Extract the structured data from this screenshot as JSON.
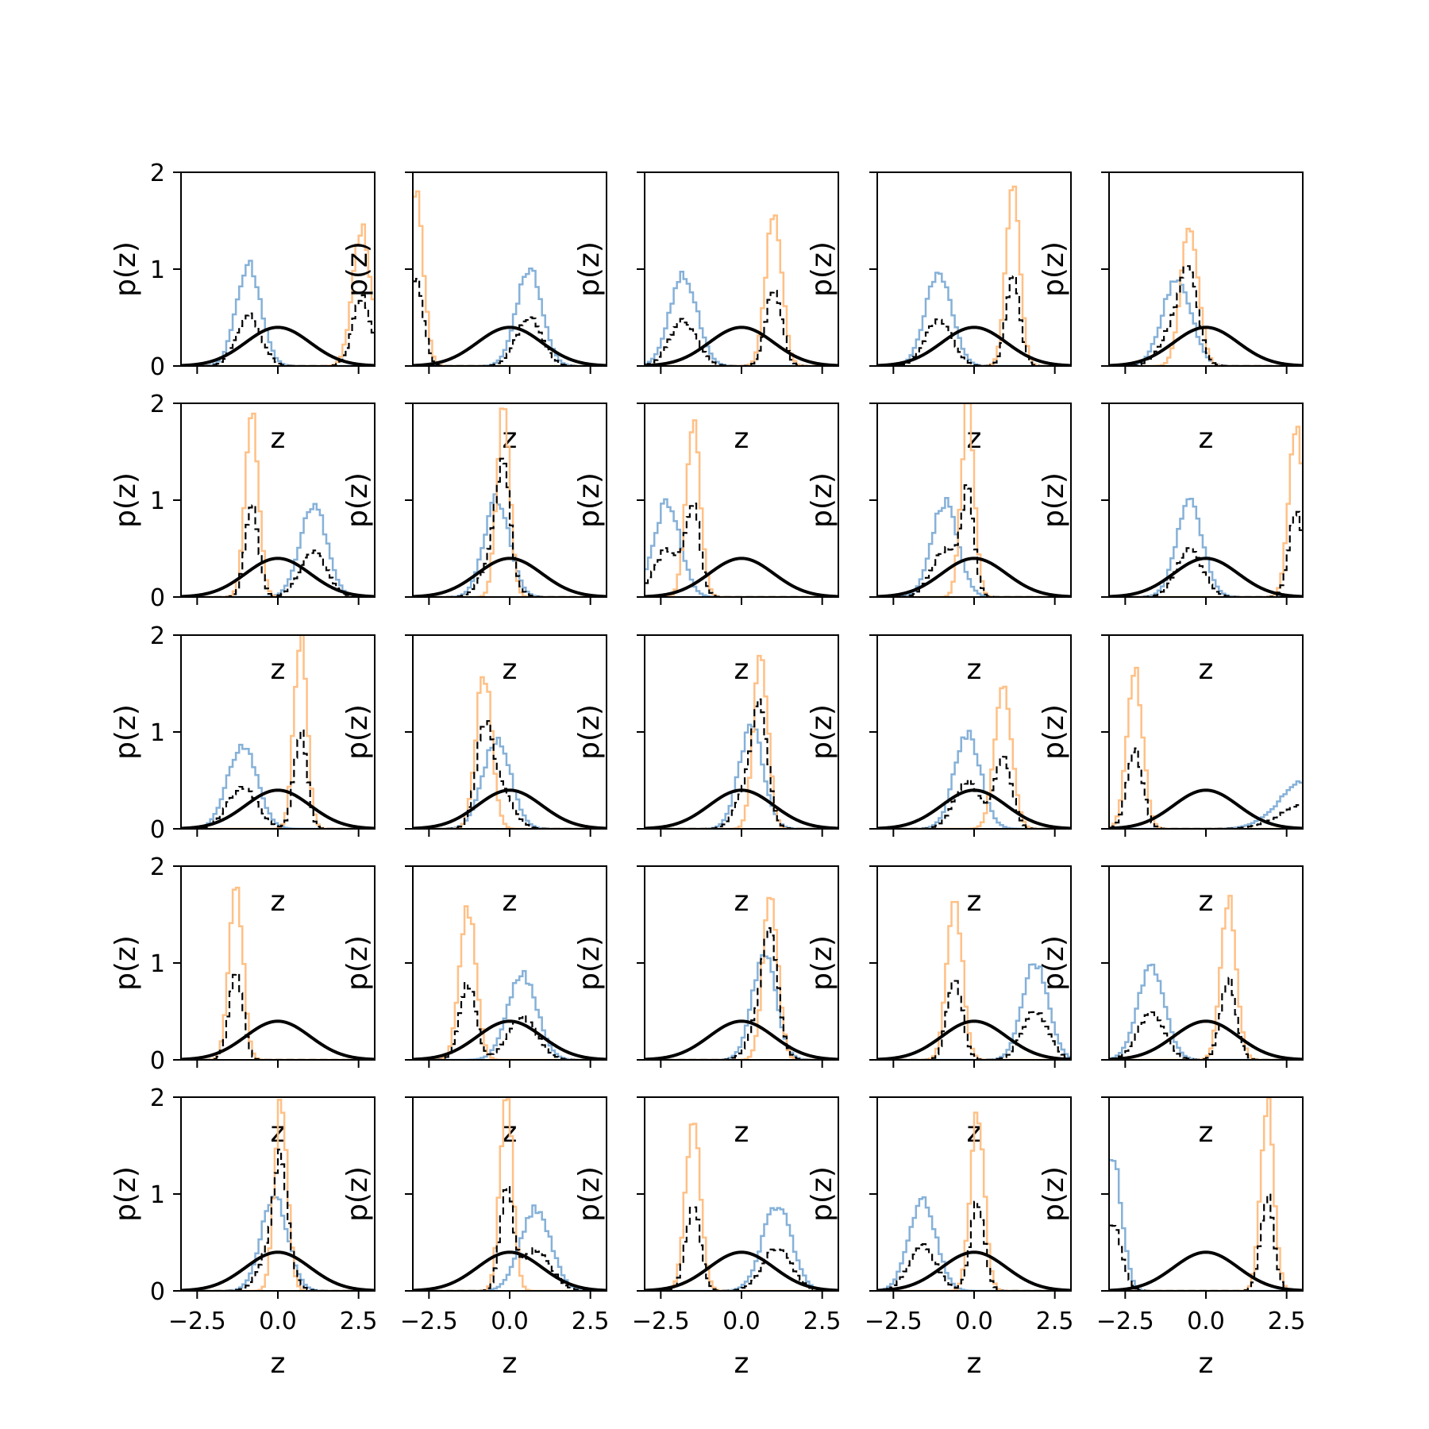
{
  "chart_data": {
    "type": "area",
    "layout": "5x5 grid of histogram panels",
    "xlim": [
      -3,
      3
    ],
    "ylim": [
      0,
      2
    ],
    "xticks": [
      -2.5,
      0.0,
      2.5
    ],
    "xtick_labels": [
      "−2.5",
      "0.0",
      "2.5"
    ],
    "yticks": [
      0,
      1,
      2
    ],
    "ytick_labels": [
      "0",
      "1",
      "2"
    ],
    "xlabel": "z",
    "ylabel": "p(z)",
    "grid": false,
    "legend": "none",
    "x_tick_labels_shown_on": "bottom row only",
    "y_tick_labels_shown_on": "left column only",
    "series_styles": {
      "blue_hist": {
        "color": "#7fadd6",
        "style": "step, solid, semi-transparent"
      },
      "orange_hist": {
        "color": "#ffbd80",
        "style": "step, solid, semi-transparent"
      },
      "mixture_hist": {
        "color": "#000000",
        "style": "step, dashed"
      },
      "prior": {
        "color": "#000000",
        "style": "solid thick",
        "description": "standard normal density N(0,1), peak 0.399 at z = 0"
      }
    },
    "panels": [
      {
        "blue": {
          "mean": -0.9,
          "peak": 1.05
        },
        "orange": {
          "mean": 2.6,
          "peak": 1.42
        }
      },
      {
        "blue": {
          "mean": 0.6,
          "peak": 1.0
        },
        "orange": {
          "mean": -2.9,
          "peak": 1.75
        }
      },
      {
        "blue": {
          "mean": -1.8,
          "peak": 0.95
        },
        "orange": {
          "mean": 1.0,
          "peak": 1.62
        }
      },
      {
        "blue": {
          "mean": -1.1,
          "peak": 0.98
        },
        "orange": {
          "mean": 1.2,
          "peak": 1.85
        }
      },
      {
        "blue": {
          "mean": -0.9,
          "peak": 0.9
        },
        "orange": {
          "mean": -0.5,
          "peak": 1.48
        }
      },
      {
        "blue": {
          "mean": 1.1,
          "peak": 0.97
        },
        "orange": {
          "mean": -0.8,
          "peak": 1.92
        }
      },
      {
        "blue": {
          "mean": -0.4,
          "peak": 1.02
        },
        "orange": {
          "mean": -0.2,
          "peak": 2.0
        }
      },
      {
        "blue": {
          "mean": -2.3,
          "peak": 0.98
        },
        "orange": {
          "mean": -1.5,
          "peak": 1.82
        }
      },
      {
        "blue": {
          "mean": -0.9,
          "peak": 0.98
        },
        "orange": {
          "mean": -0.2,
          "peak": 2.0
        }
      },
      {
        "blue": {
          "mean": -0.5,
          "peak": 0.98
        },
        "orange": {
          "mean": 2.8,
          "peak": 1.75
        }
      },
      {
        "blue": {
          "mean": -1.1,
          "peak": 0.88
        },
        "orange": {
          "mean": 0.7,
          "peak": 2.0
        }
      },
      {
        "blue": {
          "mean": -0.4,
          "peak": 0.92
        },
        "orange": {
          "mean": -0.8,
          "peak": 1.6
        }
      },
      {
        "blue": {
          "mean": 0.3,
          "peak": 1.05
        },
        "orange": {
          "mean": 0.6,
          "peak": 1.8
        }
      },
      {
        "blue": {
          "mean": -0.2,
          "peak": 0.97
        },
        "orange": {
          "mean": 0.9,
          "peak": 1.52
        }
      },
      {
        "blue": {
          "mean": 3.1,
          "peak": 0.5
        },
        "orange": {
          "mean": -2.2,
          "peak": 1.62
        }
      },
      {
        "blue": null,
        "orange": {
          "mean": -1.3,
          "peak": 1.88
        }
      },
      {
        "blue": {
          "mean": 0.4,
          "peak": 0.88
        },
        "orange": {
          "mean": -1.3,
          "peak": 1.58
        }
      },
      {
        "blue": {
          "mean": 0.7,
          "peak": 1.08
        },
        "orange": {
          "mean": 0.9,
          "peak": 1.75
        }
      },
      {
        "blue": {
          "mean": 1.9,
          "peak": 1.0
        },
        "orange": {
          "mean": -0.6,
          "peak": 1.68
        }
      },
      {
        "blue": {
          "mean": -1.7,
          "peak": 0.95
        },
        "orange": {
          "mean": 0.7,
          "peak": 1.65
        }
      },
      {
        "blue": {
          "mean": -0.1,
          "peak": 0.98
        },
        "orange": {
          "mean": 0.1,
          "peak": 2.0
        }
      },
      {
        "blue": {
          "mean": 0.8,
          "peak": 0.85
        },
        "orange": {
          "mean": -0.1,
          "peak": 2.0
        }
      },
      {
        "blue": {
          "mean": 1.1,
          "peak": 0.88
        },
        "orange": {
          "mean": -1.5,
          "peak": 1.72
        }
      },
      {
        "blue": {
          "mean": -1.6,
          "peak": 0.95
        },
        "orange": {
          "mean": 0.1,
          "peak": 1.85
        }
      },
      {
        "blue": {
          "mean": -2.9,
          "peak": 1.4
        },
        "orange": {
          "mean": 1.9,
          "peak": 1.95
        }
      }
    ]
  }
}
